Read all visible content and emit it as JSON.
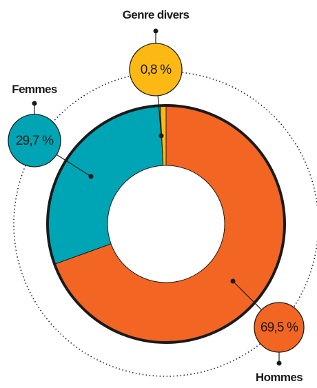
{
  "chart_data": {
    "type": "donut",
    "categories": [
      "Hommes",
      "Femmes",
      "Genre divers"
    ],
    "values": [
      69.5,
      29.7,
      0.8
    ],
    "value_labels": [
      "69,5 %",
      "29,7 %",
      "0,8 %"
    ],
    "colors": [
      "#f26522",
      "#00a5b5",
      "#fdb913"
    ]
  }
}
